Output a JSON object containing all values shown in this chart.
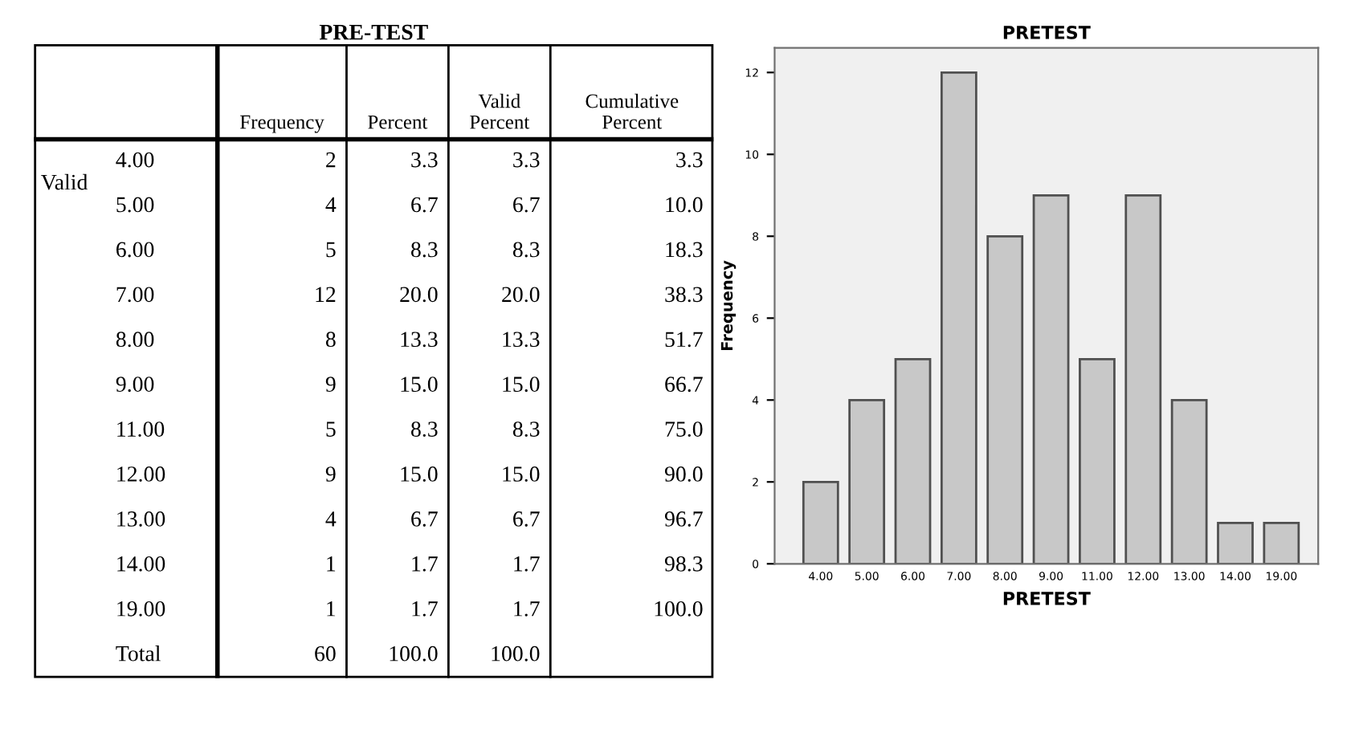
{
  "chart_data": [
    {
      "type": "other",
      "title": "PRE-TEST",
      "categories": [
        "Frequency",
        "Percent",
        "Valid Percent",
        "Cumulative Percent"
      ],
      "y_categories": [
        "4.00",
        "5.00",
        "6.00",
        "7.00",
        "8.00",
        "9.00",
        "11.00",
        "12.00",
        "13.00",
        "14.00",
        "19.00",
        "Total"
      ],
      "cell_labels": [
        [
          "2",
          "3.3",
          "3.3",
          "3.3"
        ],
        [
          "4",
          "6.7",
          "6.7",
          "10.0"
        ],
        [
          "5",
          "8.3",
          "8.3",
          "18.3"
        ],
        [
          "12",
          "20.0",
          "20.0",
          "38.3"
        ],
        [
          "8",
          "13.3",
          "13.3",
          "51.7"
        ],
        [
          "9",
          "15.0",
          "15.0",
          "66.7"
        ],
        [
          "5",
          "8.3",
          "8.3",
          "75.0"
        ],
        [
          "9",
          "15.0",
          "15.0",
          "90.0"
        ],
        [
          "4",
          "6.7",
          "6.7",
          "96.7"
        ],
        [
          "1",
          "1.7",
          "1.7",
          "98.3"
        ],
        [
          "1",
          "1.7",
          "1.7",
          "100.0"
        ],
        [
          "60",
          "100.0",
          "100.0",
          null
        ]
      ],
      "annotations": [
        "Valid"
      ]
    },
    {
      "type": "bar",
      "title": "PRETEST",
      "xlabel": "PRETEST",
      "ylabel": "Frequency",
      "categories": [
        "4.00",
        "5.00",
        "6.00",
        "7.00",
        "8.00",
        "9.00",
        "11.00",
        "12.00",
        "13.00",
        "14.00",
        "19.00"
      ],
      "values": [
        2,
        4,
        5,
        12,
        8,
        9,
        5,
        9,
        4,
        1,
        1
      ],
      "color": "#c8c8c8",
      "ylim": [
        0,
        12.6
      ],
      "yticks": [
        0,
        2,
        4,
        6,
        8,
        10,
        12
      ],
      "grid": false
    }
  ]
}
